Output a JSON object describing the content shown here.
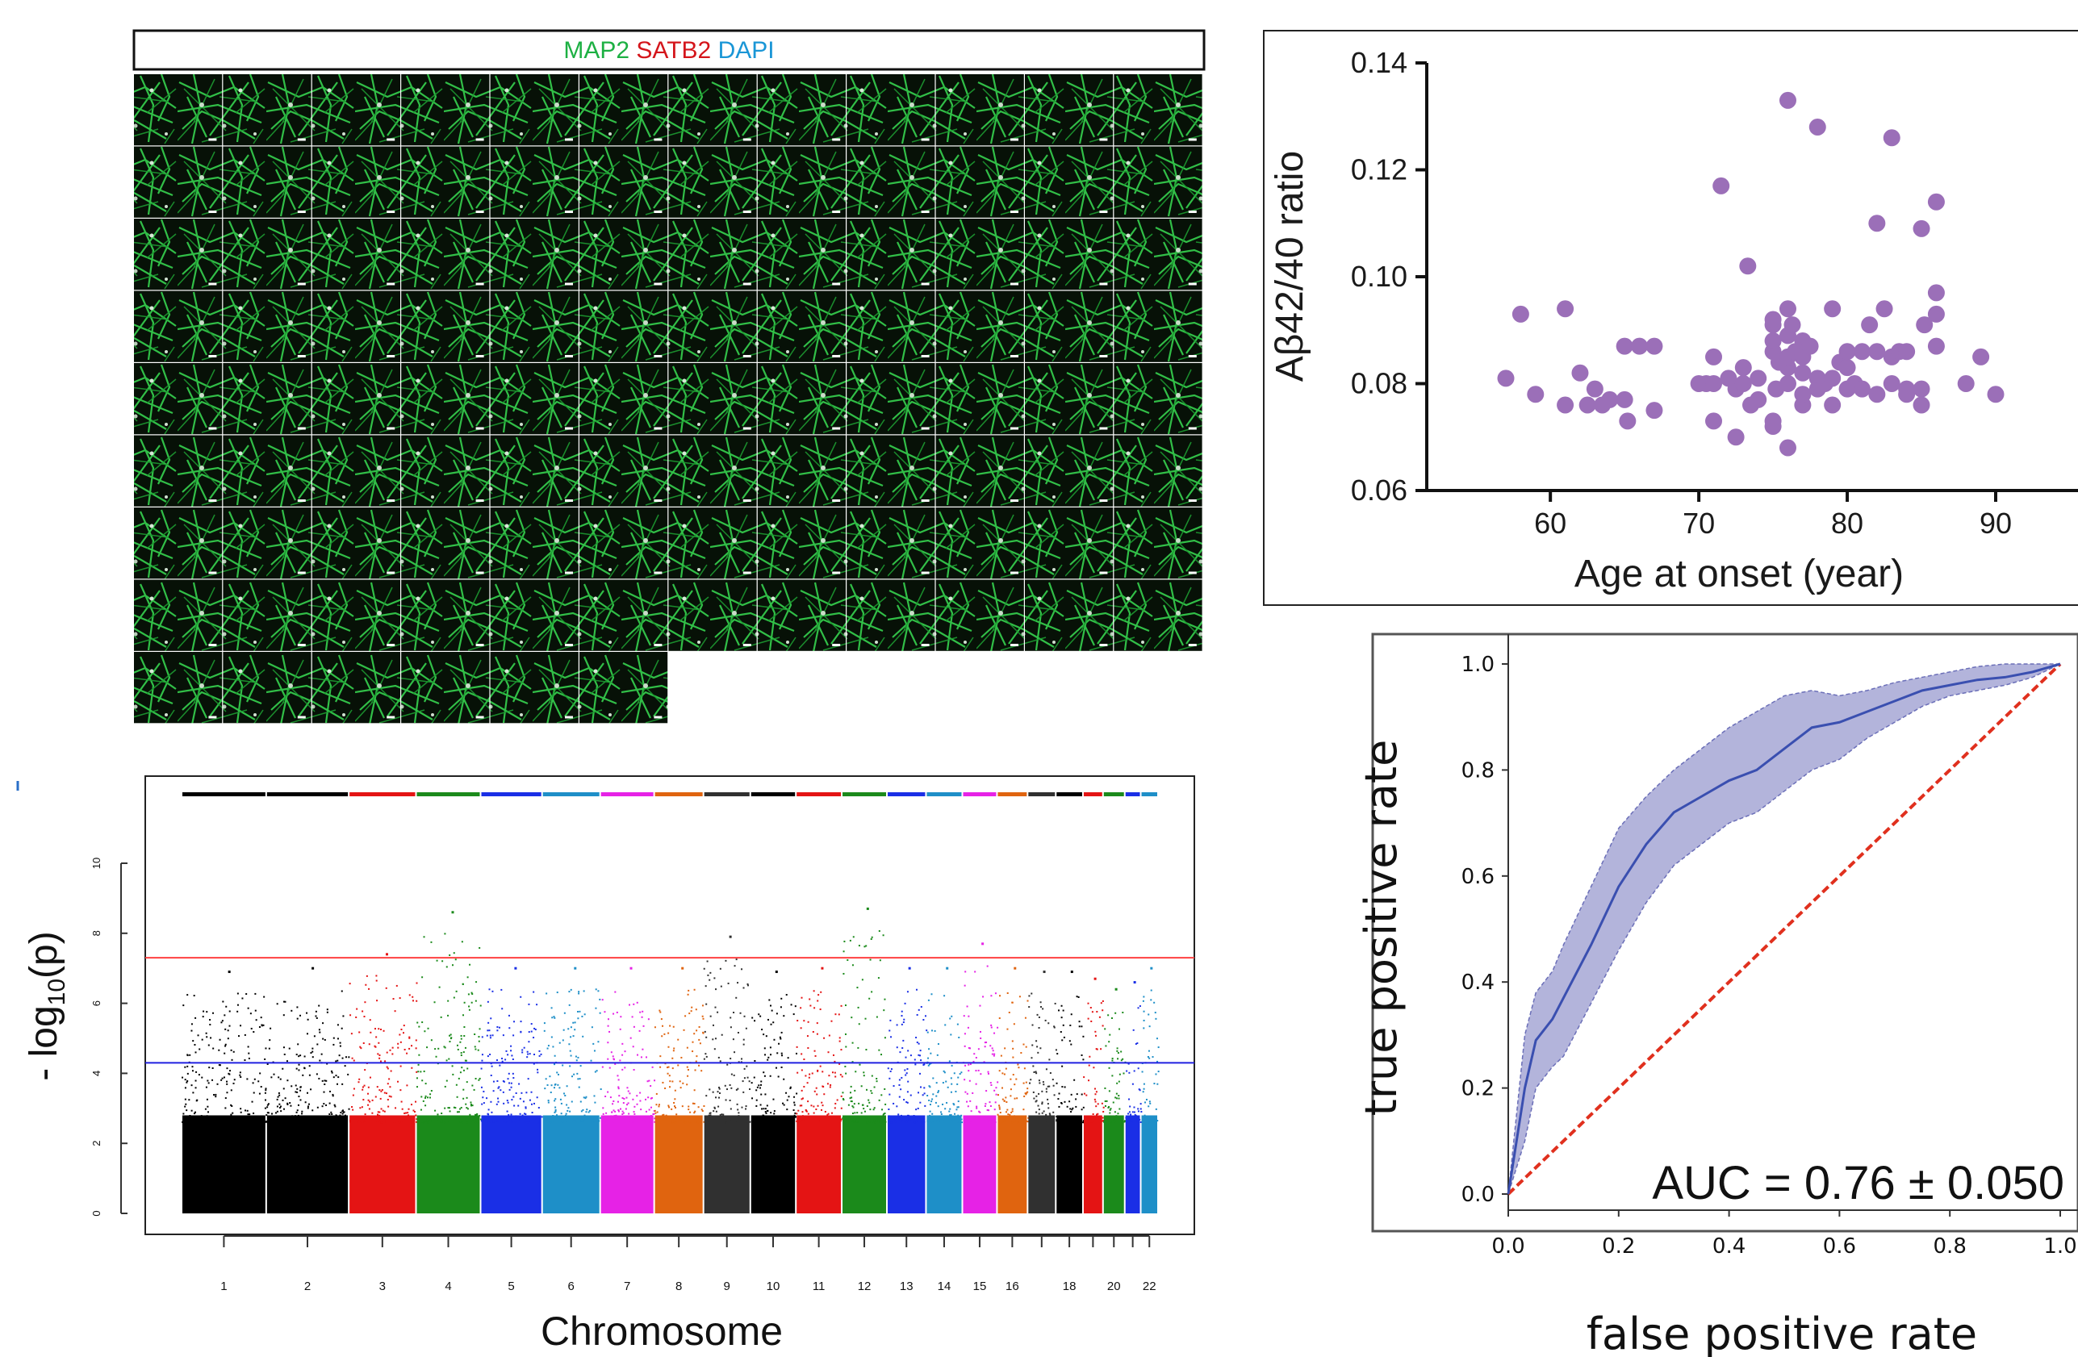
{
  "micrograph": {
    "legend": [
      {
        "text": "MAP2",
        "color": "#1db043"
      },
      {
        "text": "SATB2",
        "color": "#d4151b"
      },
      {
        "text": "DAPI",
        "color": "#1a96d6"
      }
    ],
    "grid": {
      "rows": 9,
      "cols": 12,
      "last_row_count": 6
    },
    "colors": {
      "tile_bg": "#071107",
      "neurite": "#3ee05a",
      "soma": "#c9d9c9"
    }
  },
  "chart_data": [
    {
      "type": "scatter",
      "xlabel": "Age at onset (year)",
      "ylabel": "Aβ42/40 ratio",
      "xlim": [
        55,
        95
      ],
      "ylim": [
        0.06,
        0.14
      ],
      "xticks": [
        "60",
        "70",
        "80",
        "90"
      ],
      "xtick_values": [
        60,
        70,
        80,
        90
      ],
      "yticks": [
        "0.06",
        "0.08",
        "0.10",
        "0.12",
        "0.14"
      ],
      "ytick_values": [
        0.06,
        0.08,
        0.1,
        0.12,
        0.14
      ],
      "color": "#9b6fb8",
      "points": [
        [
          57,
          0.081
        ],
        [
          58,
          0.093
        ],
        [
          59,
          0.078
        ],
        [
          61,
          0.094
        ],
        [
          61,
          0.076
        ],
        [
          62,
          0.082
        ],
        [
          62.5,
          0.076
        ],
        [
          63,
          0.079
        ],
        [
          63.5,
          0.076
        ],
        [
          64,
          0.077
        ],
        [
          65,
          0.077
        ],
        [
          65,
          0.087
        ],
        [
          65.2,
          0.073
        ],
        [
          66,
          0.087
        ],
        [
          67,
          0.087
        ],
        [
          67,
          0.075
        ],
        [
          70,
          0.08
        ],
        [
          70.5,
          0.08
        ],
        [
          71,
          0.085
        ],
        [
          71,
          0.08
        ],
        [
          71,
          0.073
        ],
        [
          71.5,
          0.117
        ],
        [
          72,
          0.081
        ],
        [
          72.5,
          0.079
        ],
        [
          72.5,
          0.07
        ],
        [
          73,
          0.08
        ],
        [
          73,
          0.083
        ],
        [
          73.3,
          0.102
        ],
        [
          73.5,
          0.076
        ],
        [
          74,
          0.081
        ],
        [
          74,
          0.077
        ],
        [
          75,
          0.086
        ],
        [
          75,
          0.088
        ],
        [
          75,
          0.091
        ],
        [
          75,
          0.092
        ],
        [
          75,
          0.073
        ],
        [
          75,
          0.072
        ],
        [
          75.2,
          0.079
        ],
        [
          75.4,
          0.084
        ],
        [
          76,
          0.133
        ],
        [
          76,
          0.094
        ],
        [
          76,
          0.089
        ],
        [
          76,
          0.083
        ],
        [
          76,
          0.08
        ],
        [
          76,
          0.085
        ],
        [
          76,
          0.068
        ],
        [
          76.3,
          0.091
        ],
        [
          76.5,
          0.086
        ],
        [
          77,
          0.088
        ],
        [
          77,
          0.082
        ],
        [
          77,
          0.085
        ],
        [
          77,
          0.076
        ],
        [
          77,
          0.078
        ],
        [
          77.5,
          0.087
        ],
        [
          78,
          0.128
        ],
        [
          78,
          0.079
        ],
        [
          78,
          0.081
        ],
        [
          78.5,
          0.08
        ],
        [
          79,
          0.094
        ],
        [
          79,
          0.076
        ],
        [
          79,
          0.081
        ],
        [
          79.5,
          0.084
        ],
        [
          80,
          0.083
        ],
        [
          80,
          0.086
        ],
        [
          80,
          0.079
        ],
        [
          80.5,
          0.08
        ],
        [
          81,
          0.086
        ],
        [
          81,
          0.079
        ],
        [
          81.5,
          0.091
        ],
        [
          82,
          0.086
        ],
        [
          82,
          0.11
        ],
        [
          82,
          0.078
        ],
        [
          82.5,
          0.094
        ],
        [
          83,
          0.126
        ],
        [
          83,
          0.085
        ],
        [
          83,
          0.08
        ],
        [
          83.5,
          0.086
        ],
        [
          84,
          0.079
        ],
        [
          84,
          0.078
        ],
        [
          84,
          0.086
        ],
        [
          85,
          0.109
        ],
        [
          85,
          0.079
        ],
        [
          85,
          0.076
        ],
        [
          85.2,
          0.091
        ],
        [
          86,
          0.114
        ],
        [
          86,
          0.093
        ],
        [
          86,
          0.097
        ],
        [
          86,
          0.087
        ],
        [
          88,
          0.08
        ],
        [
          89,
          0.085
        ],
        [
          90,
          0.078
        ]
      ]
    },
    {
      "type": "line",
      "xlabel": "false positive rate",
      "ylabel": "true positive rate",
      "xlim": [
        0,
        1
      ],
      "ylim": [
        0,
        1
      ],
      "xticks": [
        "0.0",
        "0.2",
        "0.4",
        "0.6",
        "0.8",
        "1.0"
      ],
      "xtick_values": [
        0,
        0.2,
        0.4,
        0.6,
        0.8,
        1.0
      ],
      "yticks": [
        "0.0",
        "0.2",
        "0.4",
        "0.6",
        "0.8",
        "1.0"
      ],
      "ytick_values": [
        0,
        0.2,
        0.4,
        0.6,
        0.8,
        1.0
      ],
      "annotation": "AUC = 0.76 ± 0.050",
      "series": [
        {
          "color": "#3a4fb0",
          "x": [
            0,
            0.03,
            0.05,
            0.08,
            0.1,
            0.15,
            0.2,
            0.25,
            0.3,
            0.35,
            0.4,
            0.45,
            0.5,
            0.55,
            0.6,
            0.65,
            0.7,
            0.75,
            0.8,
            0.85,
            0.9,
            0.95,
            1.0
          ],
          "y": [
            0,
            0.2,
            0.29,
            0.33,
            0.37,
            0.47,
            0.58,
            0.66,
            0.72,
            0.75,
            0.78,
            0.8,
            0.84,
            0.88,
            0.89,
            0.91,
            0.93,
            0.95,
            0.96,
            0.97,
            0.975,
            0.985,
            1.0
          ],
          "lower": [
            0,
            0.1,
            0.2,
            0.24,
            0.26,
            0.36,
            0.46,
            0.55,
            0.62,
            0.66,
            0.7,
            0.72,
            0.76,
            0.8,
            0.82,
            0.86,
            0.89,
            0.92,
            0.94,
            0.95,
            0.96,
            0.975,
            1.0
          ],
          "upper": [
            0,
            0.3,
            0.38,
            0.42,
            0.47,
            0.58,
            0.69,
            0.75,
            0.8,
            0.84,
            0.88,
            0.91,
            0.94,
            0.95,
            0.94,
            0.95,
            0.965,
            0.975,
            0.985,
            0.995,
            1.0,
            1.0,
            1.0
          ]
        },
        {
          "color": "#e0301e",
          "dashed": true,
          "x": [
            0,
            1
          ],
          "y": [
            0,
            1
          ]
        }
      ]
    },
    {
      "type": "scatter",
      "subtype": "manhattan",
      "xlabel": "Chromosome",
      "ylabel_main": "- log",
      "ylabel_sub": "10",
      "ylabel_tail": "(p)",
      "ylim": [
        0,
        12
      ],
      "yticks": [
        "0",
        "2",
        "4",
        "6",
        "8",
        "10"
      ],
      "ytick_values": [
        0,
        2,
        4,
        6,
        8,
        10
      ],
      "chromosome_labels": [
        "1",
        "2",
        "3",
        "4",
        "5",
        "6",
        "7",
        "8",
        "9",
        "10",
        "11",
        "12",
        "13",
        "14",
        "15",
        "16",
        "18",
        "20",
        "22"
      ],
      "chromosome_label_positions": [
        1,
        2,
        3,
        4,
        5,
        6,
        7,
        8,
        9,
        10,
        11,
        12,
        13,
        14,
        15,
        16,
        18,
        20,
        22
      ],
      "chromosome_sizes": [
        249,
        243,
        198,
        190,
        181,
        171,
        159,
        145,
        138,
        134,
        135,
        133,
        115,
        107,
        102,
        90,
        83,
        80,
        59,
        64,
        47,
        51
      ],
      "chromosome_colors": [
        "#000000",
        "#000000",
        "#e41414",
        "#1b8a1b",
        "#1a2fe6",
        "#1e8fc8",
        "#e622e6",
        "#e0640f",
        "#303030",
        "#000000",
        "#e41414",
        "#1b8a1b",
        "#1a2fe6",
        "#1e8fc8",
        "#e622e6",
        "#e0640f",
        "#303030",
        "#000000",
        "#e41414",
        "#1b8a1b",
        "#1a2fe6",
        "#1e8fc8"
      ],
      "genome_wide_line": 7.3,
      "suggestive_line": 4.3,
      "genome_wide_color": "#ff4040",
      "suggestive_color": "#2020e0",
      "chromosome_max_values": [
        6.9,
        7.0,
        7.4,
        8.6,
        7.0,
        7.0,
        7.0,
        7.0,
        7.9,
        6.9,
        7.0,
        8.7,
        7.0,
        7.0,
        7.7,
        7.0,
        6.9,
        6.9,
        6.7,
        6.4,
        6.6,
        7.0
      ]
    }
  ]
}
